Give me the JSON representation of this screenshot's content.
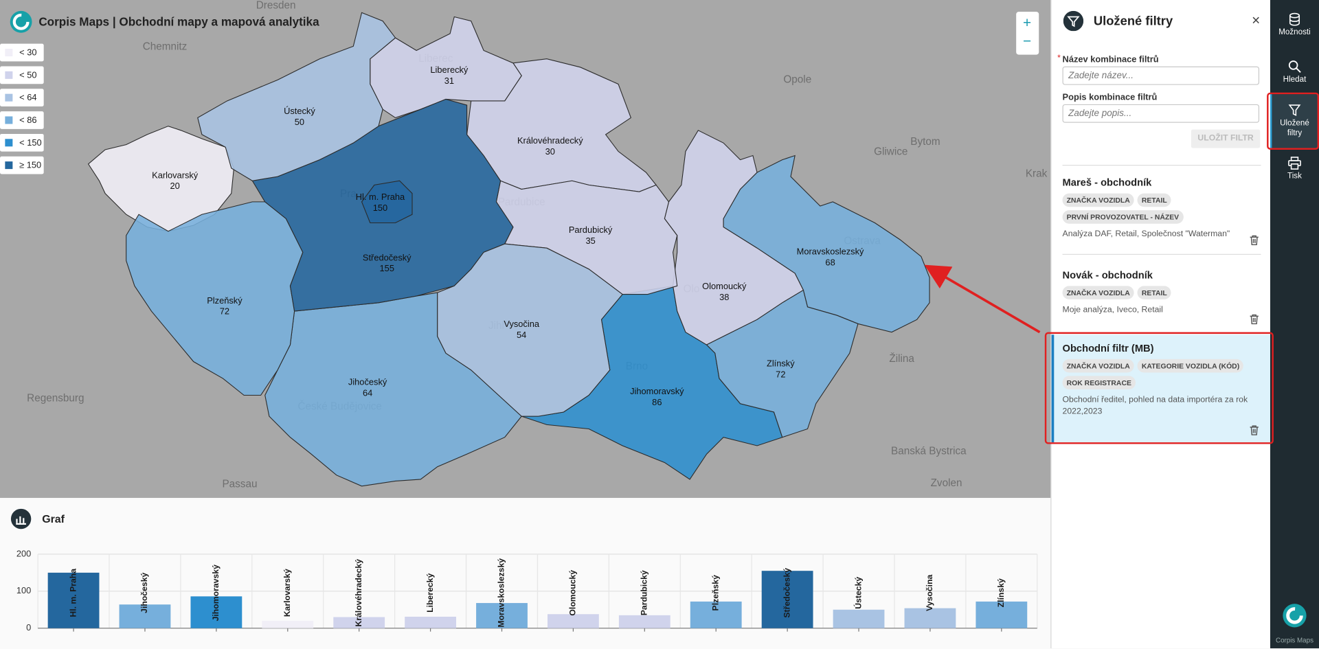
{
  "header": {
    "title": "Corpis Maps | Obchodní mapy a mapová analytika"
  },
  "map": {
    "legend": [
      {
        "label": "< 30",
        "color": "#f1eff7"
      },
      {
        "label": "< 50",
        "color": "#d0d3ec"
      },
      {
        "label": "< 64",
        "color": "#a9c3e3"
      },
      {
        "label": "< 86",
        "color": "#76afdc"
      },
      {
        "label": "< 150",
        "color": "#2d8fcf"
      },
      {
        "label": "≥ 150",
        "color": "#24679e"
      }
    ],
    "place_labels": [
      "Dresden",
      "Chemnitz",
      "Liberec",
      "Opole",
      "Gliwice",
      "Bytom",
      "Krak",
      "Ostrava",
      "Olo",
      "Brno",
      "Jihl",
      "Pardubice",
      "Pra",
      "České Budějovice",
      "Regensburg",
      "Passau",
      "Žilina",
      "Banská Bystrica",
      "Zvolen"
    ],
    "zoom_in": "+",
    "zoom_out": "−"
  },
  "chart_data": {
    "type": "bar",
    "title": "Graf",
    "categories": [
      "Hl. m. Praha",
      "Jihočeský",
      "Jihomoravský",
      "Karlovarský",
      "Královéhradecký",
      "Liberecký",
      "Moravskoslezský",
      "Olomoucký",
      "Pardubický",
      "Plzeňský",
      "Středočeský",
      "Ústecký",
      "Vysočina",
      "Zlínský"
    ],
    "values": [
      150,
      64,
      86,
      20,
      30,
      31,
      68,
      38,
      35,
      72,
      155,
      50,
      54,
      72
    ],
    "colors": [
      "#24679e",
      "#76afdc",
      "#2d8fcf",
      "#f1eff7",
      "#d0d3ec",
      "#d0d3ec",
      "#76afdc",
      "#d0d3ec",
      "#d0d3ec",
      "#76afdc",
      "#24679e",
      "#a9c3e3",
      "#a9c3e3",
      "#76afdc"
    ],
    "ylim": [
      0,
      200
    ],
    "yticks": [
      0,
      100,
      200
    ],
    "grid": true
  },
  "sidebar": {
    "title": "Uložené filtry",
    "close": "×",
    "form": {
      "required": "*",
      "name_label": "Název kombinace filtrů",
      "name_placeholder": "Zadejte název...",
      "desc_label": "Popis kombinace filtrů",
      "desc_placeholder": "Zadejte popis...",
      "save_button": "ULOŽIT FILTR"
    },
    "filters": [
      {
        "title": "Mareš - obchodník",
        "tags": [
          "ZNAČKA VOZIDLA",
          "RETAIL",
          "PRVNÍ PROVOZOVATEL - NÁZEV"
        ],
        "description": "Analýza DAF, Retail, Společnost \"Waterman\""
      },
      {
        "title": "Novák - obchodník",
        "tags": [
          "ZNAČKA VOZIDLA",
          "RETAIL"
        ],
        "description": "Moje analýza, Iveco, Retail"
      },
      {
        "title": "Obchodní filtr (MB)",
        "tags": [
          "ZNAČKA VOZIDLA",
          "KATEGORIE VOZIDLA (KÓD)",
          "ROK REGISTRACE"
        ],
        "description": "Obchodní ředitel, pohled na data importéra za rok 2022,2023"
      }
    ]
  },
  "nav": {
    "items": [
      "Možnosti",
      "Hledat",
      "Uložené filtry",
      "Tisk"
    ],
    "brand": "Corpis Maps"
  }
}
